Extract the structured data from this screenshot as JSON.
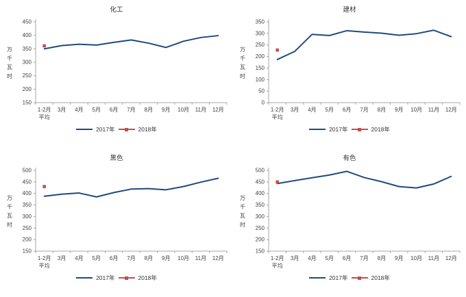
{
  "colors": {
    "axis": "#A6A6A6",
    "text": "#404040",
    "line_2017": "#1F497D",
    "marker_2018": "#C0504D"
  },
  "chart_data": [
    {
      "type": "line",
      "title": "化工",
      "ylabel": "万千瓦时",
      "categories": [
        "1-2月|平均",
        "3月",
        "4月",
        "5月",
        "6月",
        "7月",
        "8月",
        "9月",
        "10月",
        "11月",
        "12月"
      ],
      "ylim": [
        150,
        450
      ],
      "ytick_step": 50,
      "grid": false,
      "legend_position": "bottom",
      "series": [
        {
          "name": "2017年",
          "kind": "line",
          "color": "#1F497D",
          "values": [
            350,
            362,
            367,
            364,
            374,
            383,
            371,
            355,
            378,
            392,
            399
          ]
        },
        {
          "name": "2018年",
          "kind": "point",
          "color": "#C0504D",
          "values": [
            361,
            null,
            null,
            null,
            null,
            null,
            null,
            null,
            null,
            null,
            null
          ]
        }
      ]
    },
    {
      "type": "line",
      "title": "建材",
      "ylabel": "万千瓦时",
      "categories": [
        "1-2月|平均",
        "3月",
        "4月",
        "5月",
        "6月",
        "7月",
        "8月",
        "9月",
        "10月",
        "11月",
        "12月"
      ],
      "ylim": [
        0,
        350
      ],
      "ytick_step": 50,
      "grid": false,
      "legend_position": "bottom",
      "series": [
        {
          "name": "2017年",
          "kind": "line",
          "color": "#1F497D",
          "values": [
            187,
            222,
            296,
            291,
            312,
            306,
            301,
            292,
            299,
            314,
            286
          ]
        },
        {
          "name": "2018年",
          "kind": "point",
          "color": "#C0504D",
          "values": [
            228,
            null,
            null,
            null,
            null,
            null,
            null,
            null,
            null,
            null,
            null
          ]
        }
      ]
    },
    {
      "type": "line",
      "title": "黑色",
      "ylabel": "万千瓦时",
      "categories": [
        "1-2月|平均",
        "3月",
        "4月",
        "5月",
        "6月",
        "7月",
        "8月",
        "9月",
        "10月",
        "11月",
        "12月"
      ],
      "ylim": [
        150,
        500
      ],
      "ytick_step": 50,
      "grid": false,
      "legend_position": "bottom",
      "series": [
        {
          "name": "2017年",
          "kind": "line",
          "color": "#1F497D",
          "values": [
            388,
            397,
            402,
            385,
            404,
            419,
            421,
            416,
            430,
            449,
            466
          ]
        },
        {
          "name": "2018年",
          "kind": "point",
          "color": "#C0504D",
          "values": [
            430,
            null,
            null,
            null,
            null,
            null,
            null,
            null,
            null,
            null,
            null
          ]
        }
      ]
    },
    {
      "type": "line",
      "title": "有色",
      "ylabel": "万千瓦时",
      "categories": [
        "1-2月|平均",
        "3月",
        "4月",
        "5月",
        "6月",
        "7月",
        "8月",
        "9月",
        "10月",
        "11月",
        "12月"
      ],
      "ylim": [
        150,
        500
      ],
      "ytick_step": 50,
      "grid": false,
      "legend_position": "bottom",
      "series": [
        {
          "name": "2017年",
          "kind": "line",
          "color": "#1F497D",
          "values": [
            443,
            456,
            468,
            480,
            496,
            469,
            451,
            430,
            424,
            441,
            474
          ]
        },
        {
          "name": "2018年",
          "kind": "point",
          "color": "#C0504D",
          "values": [
            450,
            null,
            null,
            null,
            null,
            null,
            null,
            null,
            null,
            null,
            null
          ]
        }
      ]
    }
  ]
}
